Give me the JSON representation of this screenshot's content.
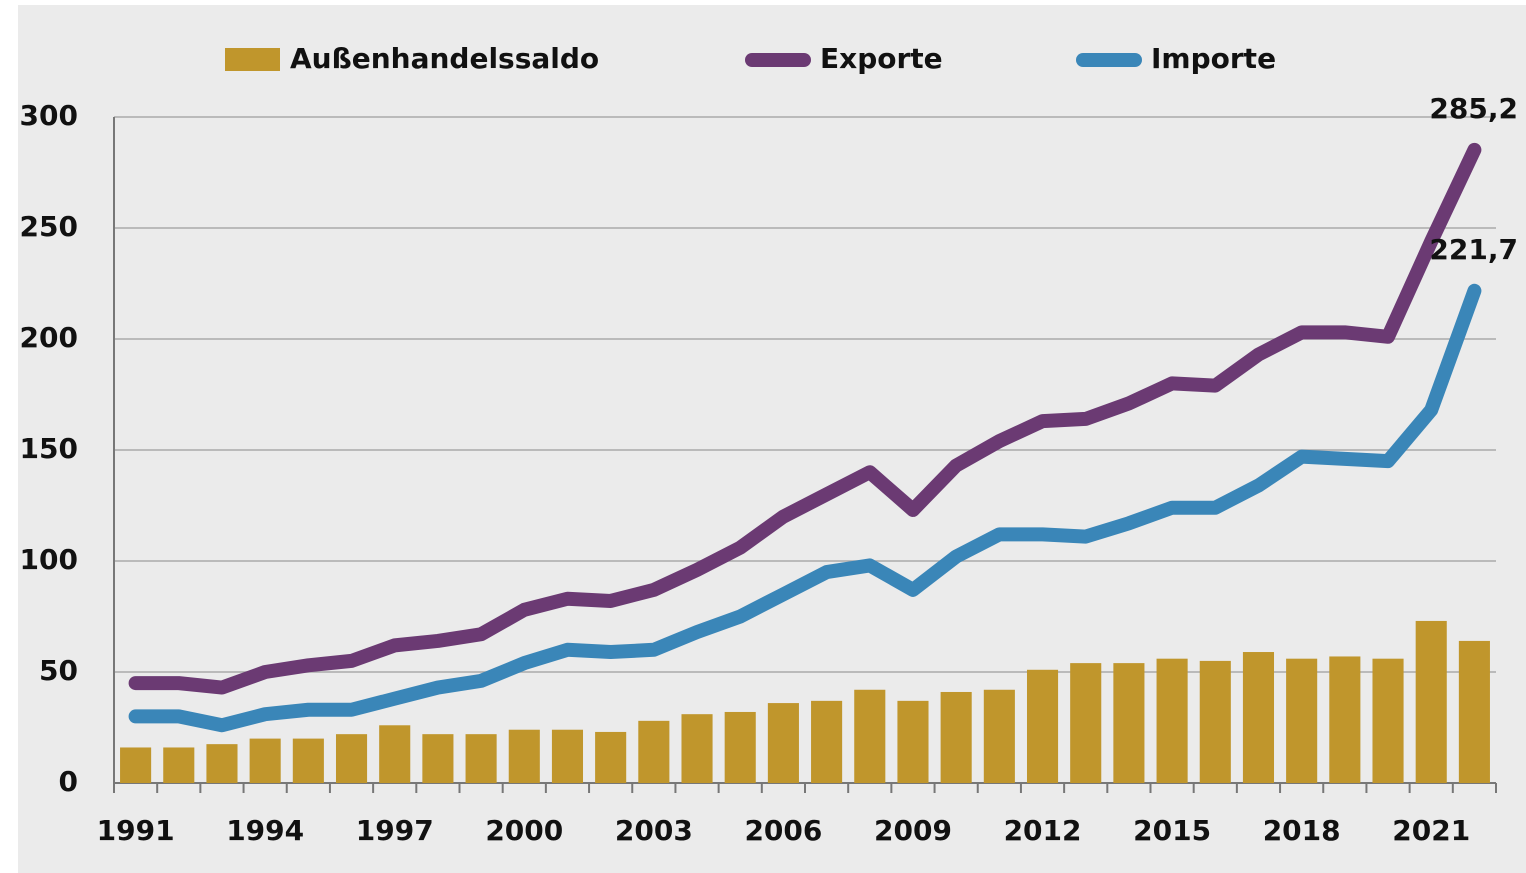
{
  "chart_data": {
    "type": "bar_line",
    "categories": [
      "1991",
      null,
      null,
      "1994",
      null,
      null,
      "1997",
      null,
      null,
      "2000",
      null,
      null,
      "2003",
      null,
      null,
      "2006",
      null,
      null,
      "2009",
      null,
      null,
      "2012",
      null,
      null,
      "2015",
      null,
      null,
      "2018",
      null,
      null,
      "2021",
      null
    ],
    "series": [
      {
        "name": "Außenhandelssaldo",
        "type": "bar",
        "color": "#c0962c",
        "values": [
          16,
          16,
          17.5,
          20,
          20,
          22,
          26,
          22,
          22,
          24,
          24,
          23,
          28,
          31,
          32,
          36,
          37,
          42,
          37,
          41,
          42,
          51,
          54,
          54,
          56,
          55,
          59,
          56,
          57,
          56,
          73,
          64
        ]
      },
      {
        "name": "Exporte",
        "type": "line",
        "color": "#6b3a73",
        "values": [
          45,
          45,
          43,
          50,
          53,
          55,
          62,
          64,
          67,
          78,
          83,
          82,
          87,
          96,
          106,
          120,
          130,
          140,
          123,
          143,
          154,
          163,
          164,
          171,
          180,
          179,
          193,
          203,
          203,
          201,
          244,
          285.2
        ],
        "value_labels": [
          null,
          null,
          null,
          null,
          null,
          null,
          null,
          null,
          null,
          null,
          null,
          null,
          null,
          null,
          null,
          null,
          null,
          null,
          null,
          null,
          null,
          null,
          null,
          null,
          null,
          null,
          null,
          null,
          null,
          null,
          null,
          "285,2"
        ]
      },
      {
        "name": "Importe",
        "type": "line",
        "color": "#3a86b8",
        "values": [
          30,
          30,
          26,
          31,
          33,
          33,
          38,
          43,
          46,
          54,
          60,
          59,
          60,
          68,
          75,
          85,
          95,
          98,
          87,
          102,
          112,
          112,
          111,
          117,
          124,
          124,
          134,
          147,
          146,
          145,
          168,
          221.7
        ],
        "value_labels": [
          null,
          null,
          null,
          null,
          null,
          null,
          null,
          null,
          null,
          null,
          null,
          null,
          null,
          null,
          null,
          null,
          null,
          null,
          null,
          null,
          null,
          null,
          null,
          null,
          null,
          null,
          null,
          null,
          null,
          null,
          null,
          "221,7"
        ]
      }
    ],
    "ylim": [
      0,
      300
    ],
    "yticks": [
      0,
      50,
      100,
      150,
      200,
      250,
      300
    ],
    "grid": true,
    "legend": "top"
  }
}
